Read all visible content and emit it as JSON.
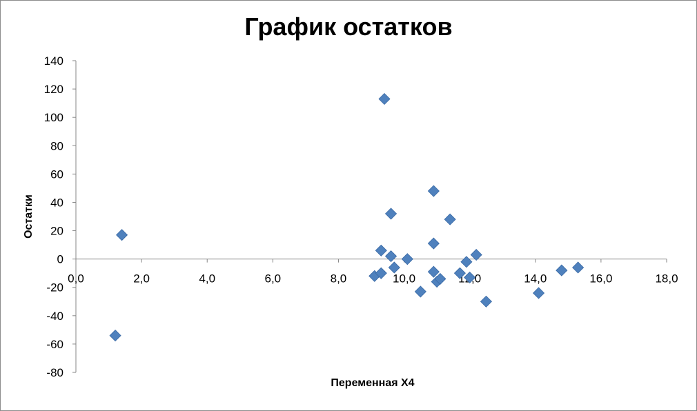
{
  "chart_data": {
    "type": "scatter",
    "title": "График остатков",
    "xlabel": "Переменная X4",
    "ylabel": "Остатки",
    "xlim": [
      0,
      18
    ],
    "ylim": [
      -80,
      140
    ],
    "x_ticks": [
      0,
      2,
      4,
      6,
      8,
      10,
      12,
      14,
      16,
      18
    ],
    "x_tick_labels": [
      "0,0",
      "2,0",
      "4,0",
      "6,0",
      "8,0",
      "10,0",
      "12,0",
      "14,0",
      "16,0",
      "18,0"
    ],
    "y_ticks": [
      140,
      120,
      100,
      80,
      60,
      40,
      20,
      0,
      -20,
      -40,
      -60,
      -80
    ],
    "y_tick_labels": [
      "140",
      "120",
      "100",
      "80",
      "60",
      "40",
      "20",
      "0",
      "-20",
      "-40",
      "-60",
      "-80"
    ],
    "grid": false,
    "legend": "none",
    "marker": "diamond",
    "marker_color": "#4F81BD",
    "points": [
      {
        "x": 1.2,
        "y": -54
      },
      {
        "x": 1.4,
        "y": 17
      },
      {
        "x": 9.1,
        "y": -12
      },
      {
        "x": 9.3,
        "y": 6
      },
      {
        "x": 9.3,
        "y": -10
      },
      {
        "x": 9.4,
        "y": 113
      },
      {
        "x": 9.6,
        "y": 32
      },
      {
        "x": 9.6,
        "y": 2
      },
      {
        "x": 9.7,
        "y": -6
      },
      {
        "x": 10.1,
        "y": 0
      },
      {
        "x": 10.5,
        "y": -23
      },
      {
        "x": 10.9,
        "y": 48
      },
      {
        "x": 10.9,
        "y": 11
      },
      {
        "x": 10.9,
        "y": -9
      },
      {
        "x": 11.0,
        "y": -16
      },
      {
        "x": 11.1,
        "y": -14
      },
      {
        "x": 11.4,
        "y": 28
      },
      {
        "x": 11.7,
        "y": -10
      },
      {
        "x": 11.9,
        "y": -2
      },
      {
        "x": 12.0,
        "y": -13
      },
      {
        "x": 12.2,
        "y": 3
      },
      {
        "x": 12.5,
        "y": -30
      },
      {
        "x": 14.1,
        "y": -24
      },
      {
        "x": 14.8,
        "y": -8
      },
      {
        "x": 15.3,
        "y": -6
      }
    ]
  }
}
